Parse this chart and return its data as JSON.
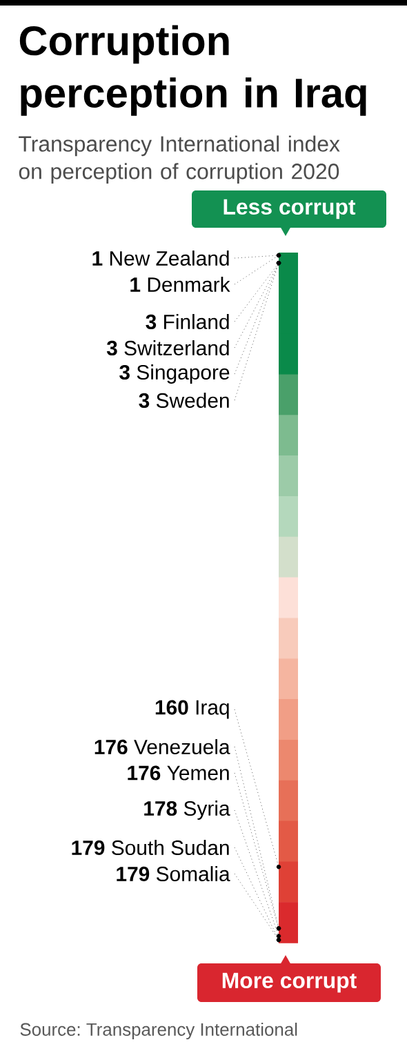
{
  "chart_data": {
    "type": "other",
    "title": "Corruption perception in Iraq",
    "subtitle": "Transparency International index on perception of corruption 2020",
    "categories": [
      "New Zealand",
      "Denmark",
      "Finland",
      "Switzerland",
      "Singapore",
      "Sweden",
      "Iraq",
      "Venezuela",
      "Yemen",
      "Syria",
      "South Sudan",
      "Somalia"
    ],
    "values": [
      1,
      1,
      3,
      3,
      3,
      3,
      160,
      176,
      176,
      178,
      179,
      179
    ],
    "data_labels": true,
    "annotations": [
      "Less corrupt",
      "More corrupt",
      "Source: Transparency International"
    ]
  }
}
